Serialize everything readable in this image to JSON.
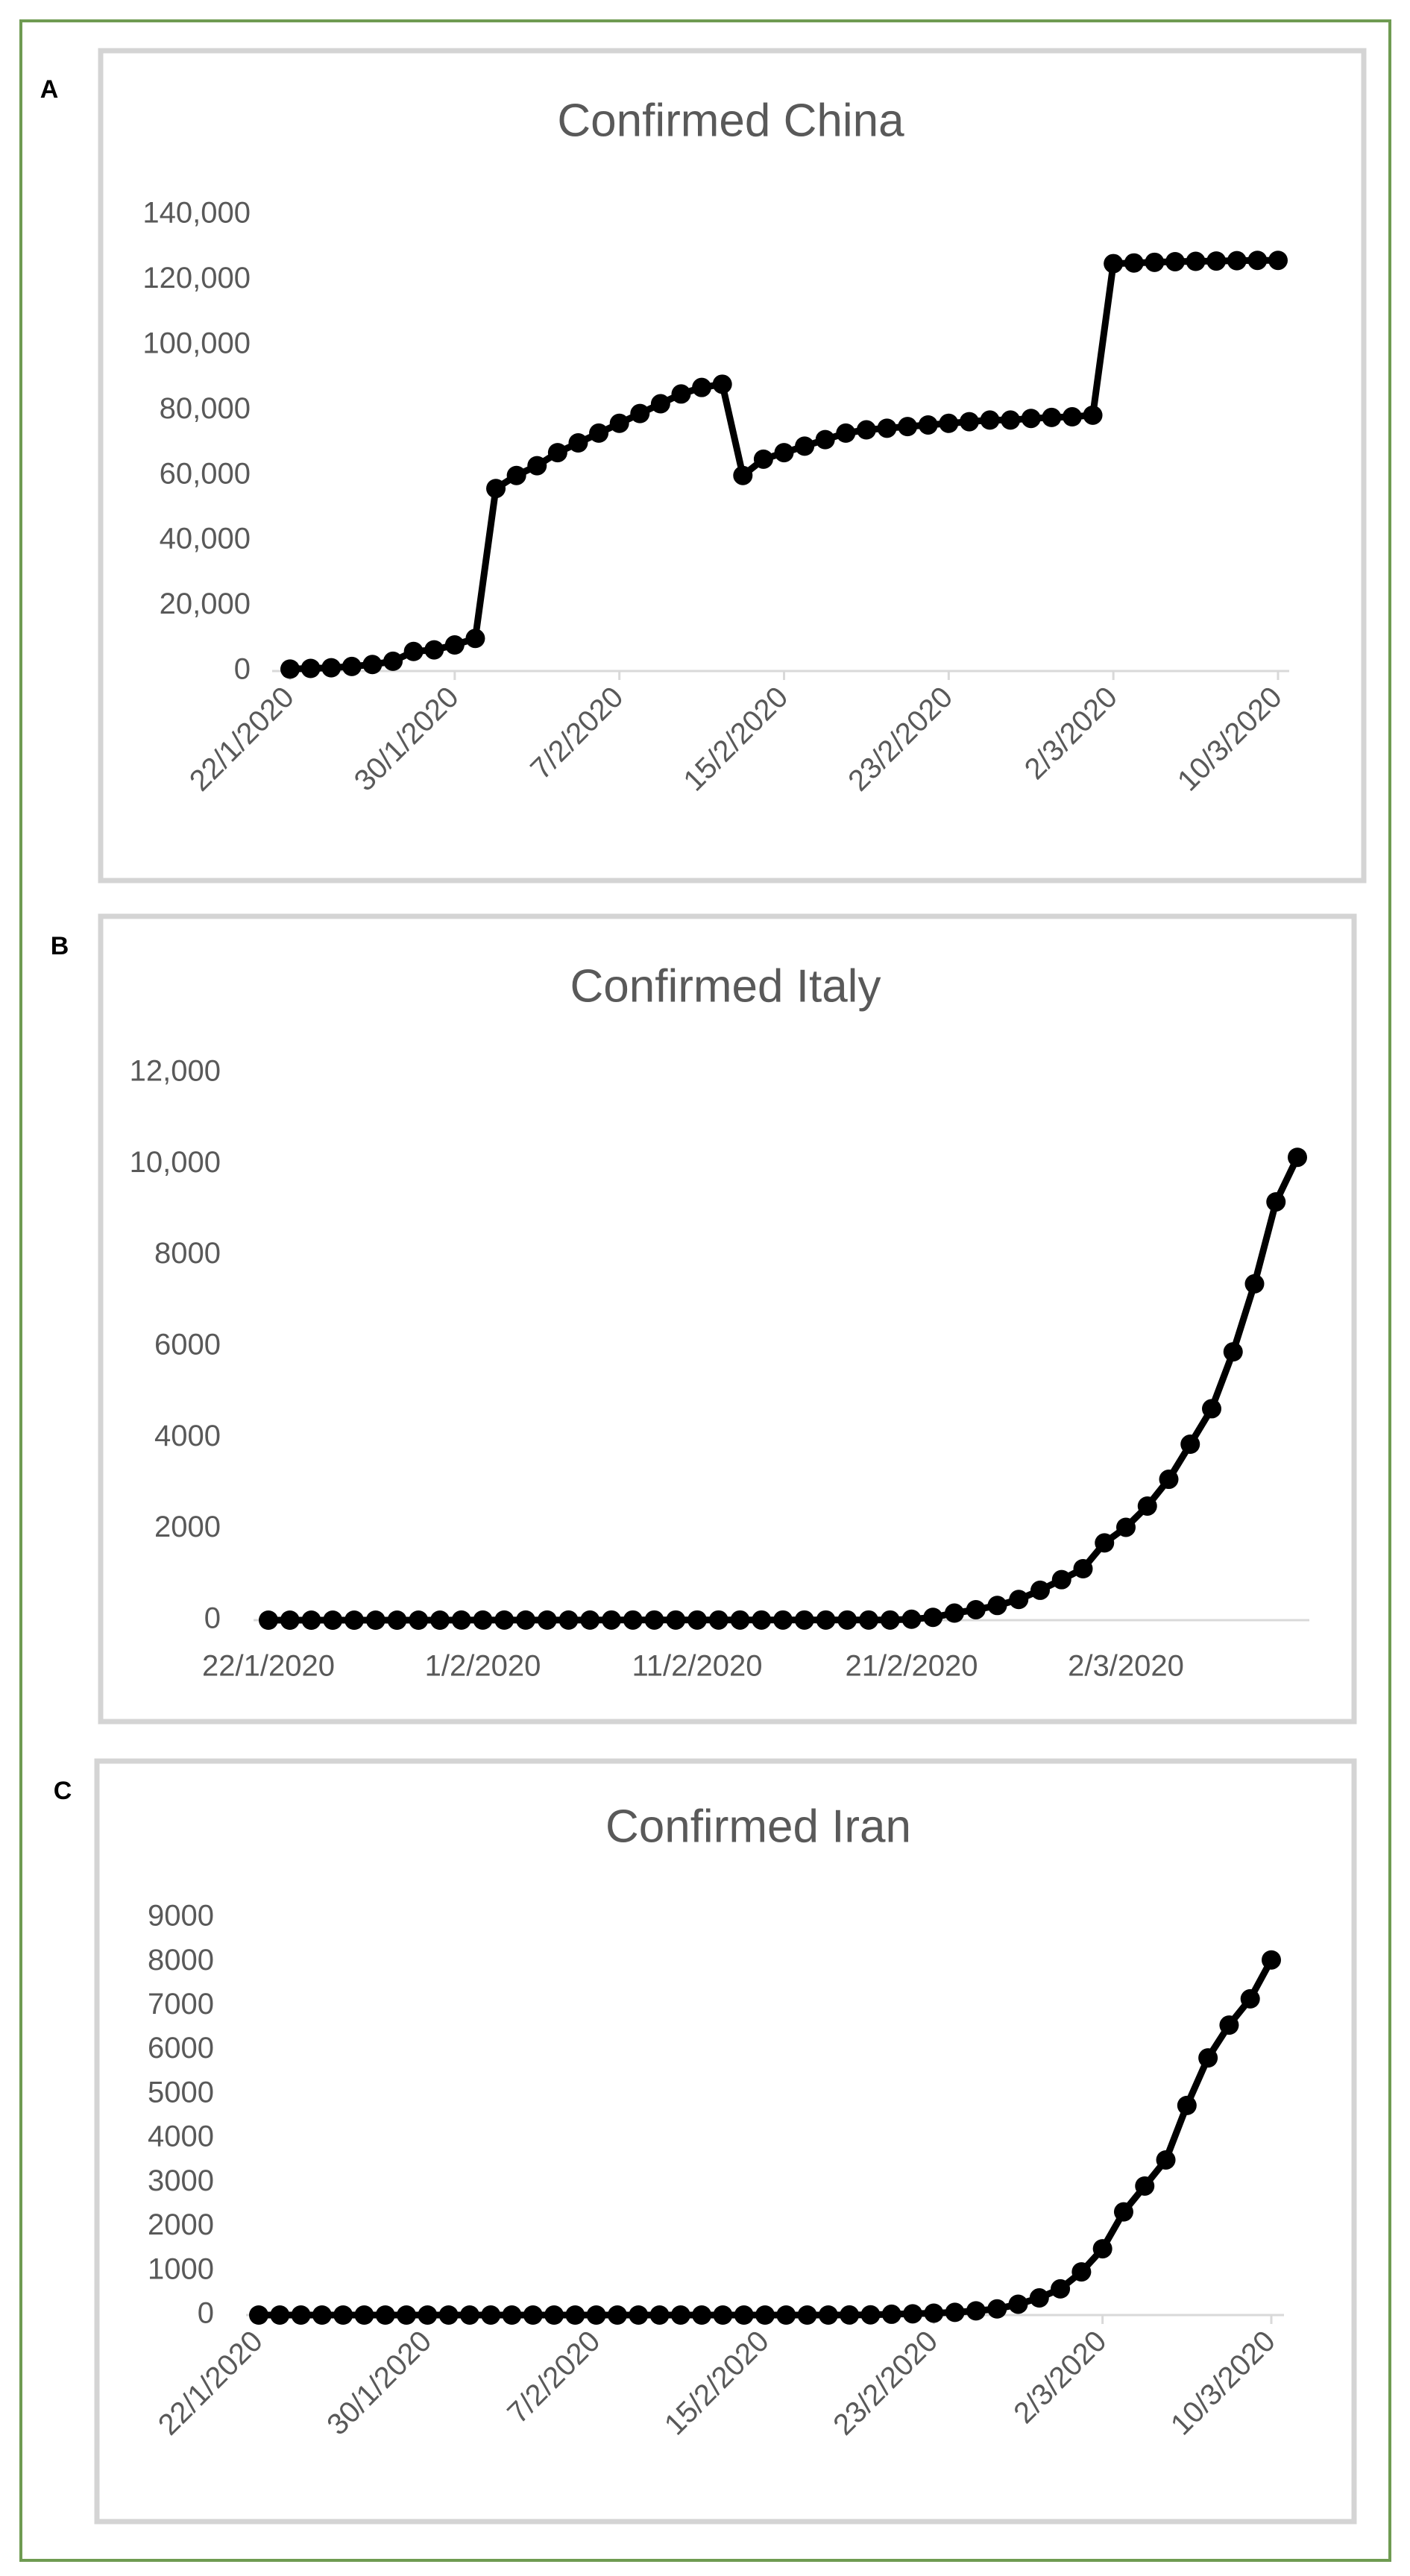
{
  "chart_data": [
    {
      "type": "line",
      "panel": "A",
      "title": "Confirmed China",
      "color": "#000000",
      "rotate_x_labels": true,
      "grid": false,
      "categories": [
        "22/1/2020",
        null,
        null,
        null,
        null,
        null,
        null,
        null,
        "30/1/2020",
        null,
        null,
        null,
        null,
        null,
        null,
        null,
        "7/2/2020",
        null,
        null,
        null,
        null,
        null,
        null,
        null,
        "15/2/2020",
        null,
        null,
        null,
        null,
        null,
        null,
        null,
        "23/2/2020",
        null,
        null,
        null,
        null,
        null,
        null,
        null,
        "2/3/2020",
        null,
        null,
        null,
        null,
        null,
        null,
        null,
        "10/3/2020"
      ],
      "values": [
        600,
        800,
        1000,
        1400,
        2000,
        3000,
        6000,
        6500,
        8000,
        10000,
        56000,
        60000,
        63000,
        67000,
        70000,
        73000,
        76000,
        79000,
        82000,
        85000,
        87000,
        88000,
        60000,
        65000,
        67000,
        69000,
        71000,
        73000,
        74000,
        74500,
        75000,
        75500,
        76000,
        76500,
        77000,
        77000,
        77500,
        77800,
        78000,
        78500,
        125000,
        125200,
        125400,
        125600,
        125700,
        125800,
        125900,
        126000,
        126000
      ],
      "ylim": [
        0,
        140000
      ],
      "yticks": [
        0,
        {
          "value": 20000,
          "label": "20,000"
        },
        {
          "value": 40000,
          "label": "40,000"
        },
        {
          "value": 60000,
          "label": "60,000"
        },
        {
          "value": 80000,
          "label": "80,000"
        },
        {
          "value": 100000,
          "label": "100,000"
        },
        {
          "value": 120000,
          "label": "120,000"
        },
        {
          "value": 140000,
          "label": "140,000"
        }
      ]
    },
    {
      "type": "line",
      "panel": "B",
      "title": "Confirmed Italy",
      "color": "#000000",
      "rotate_x_labels": false,
      "grid": false,
      "categories": [
        "22/1/2020",
        null,
        null,
        null,
        null,
        null,
        null,
        null,
        null,
        null,
        "1/2/2020",
        null,
        null,
        null,
        null,
        null,
        null,
        null,
        null,
        null,
        "11/2/2020",
        null,
        null,
        null,
        null,
        null,
        null,
        null,
        null,
        null,
        "21/2/2020",
        null,
        null,
        null,
        null,
        null,
        null,
        null,
        null,
        null,
        "2/3/2020",
        null,
        null,
        null,
        null,
        null,
        null,
        null,
        null
      ],
      "values": [
        0,
        0,
        0,
        0,
        0,
        0,
        0,
        0,
        0,
        2,
        2,
        2,
        2,
        2,
        2,
        2,
        3,
        3,
        3,
        3,
        3,
        3,
        3,
        3,
        3,
        3,
        3,
        3,
        3,
        3,
        20,
        62,
        155,
        229,
        322,
        453,
        655,
        888,
        1128,
        1694,
        2036,
        2502,
        3089,
        3858,
        4636,
        5883,
        7375,
        9172,
        10149
      ],
      "ylim": [
        0,
        12000
      ],
      "yticks": [
        0,
        2000,
        4000,
        6000,
        8000,
        {
          "value": 10000,
          "label": "10,000"
        },
        {
          "value": 12000,
          "label": "12,000"
        }
      ]
    },
    {
      "type": "line",
      "panel": "C",
      "title": "Confirmed Iran",
      "color": "#000000",
      "rotate_x_labels": true,
      "grid": false,
      "categories": [
        "22/1/2020",
        null,
        null,
        null,
        null,
        null,
        null,
        null,
        "30/1/2020",
        null,
        null,
        null,
        null,
        null,
        null,
        null,
        "7/2/2020",
        null,
        null,
        null,
        null,
        null,
        null,
        null,
        "15/2/2020",
        null,
        null,
        null,
        null,
        null,
        null,
        null,
        "23/2/2020",
        null,
        null,
        null,
        null,
        null,
        null,
        null,
        "2/3/2020",
        null,
        null,
        null,
        null,
        null,
        null,
        null,
        "10/3/2020"
      ],
      "values": [
        0,
        0,
        0,
        0,
        0,
        0,
        0,
        0,
        0,
        0,
        0,
        0,
        0,
        0,
        0,
        0,
        0,
        0,
        0,
        0,
        0,
        0,
        0,
        0,
        0,
        0,
        0,
        0,
        2,
        5,
        18,
        28,
        43,
        61,
        95,
        139,
        245,
        388,
        593,
        978,
        1501,
        2336,
        2922,
        3513,
        4747,
        5823,
        6566,
        7161,
        8042
      ],
      "ylim": [
        0,
        9000
      ],
      "yticks": [
        0,
        1000,
        2000,
        3000,
        4000,
        5000,
        6000,
        7000,
        8000,
        9000
      ]
    }
  ]
}
